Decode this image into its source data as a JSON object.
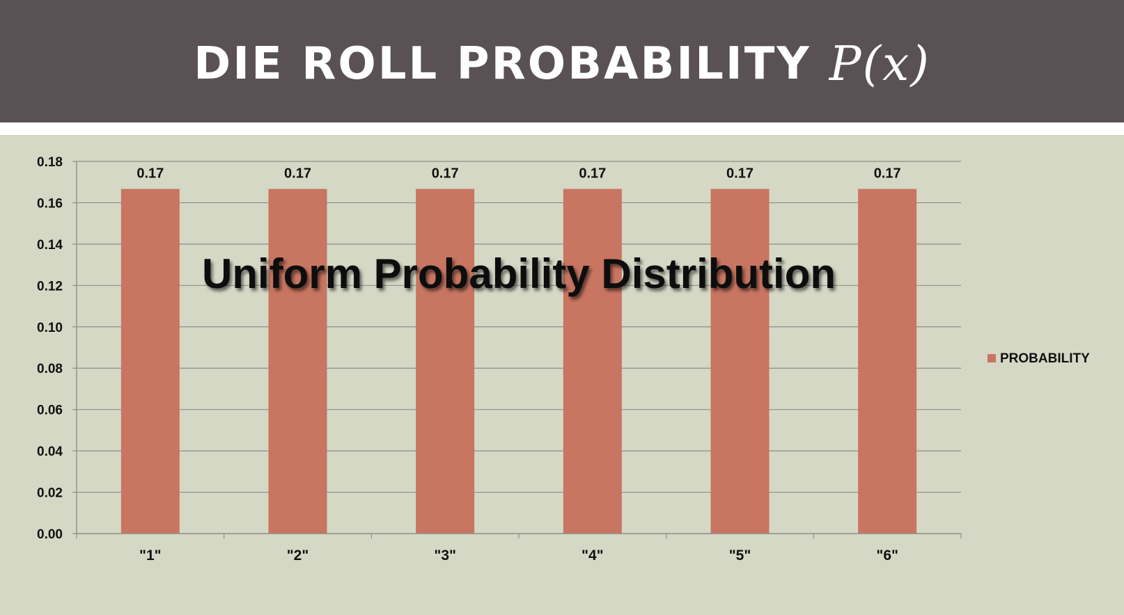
{
  "header": {
    "title": "DIE ROLL PROBABILITY",
    "title_math": "P(x)"
  },
  "colors": {
    "header_bg": "#5a5155",
    "background": "#d5d8c5",
    "bar": "#c87561",
    "grid": "#8e8e88"
  },
  "chart_data": {
    "type": "bar",
    "categories": [
      "\"1\"",
      "\"2\"",
      "\"3\"",
      "\"4\"",
      "\"5\"",
      "\"6\""
    ],
    "series": [
      {
        "name": "PROBABILITY",
        "values": [
          0.1667,
          0.1667,
          0.1667,
          0.1667,
          0.1667,
          0.1667
        ]
      }
    ],
    "data_labels": [
      "0.17",
      "0.17",
      "0.17",
      "0.17",
      "0.17",
      "0.17"
    ],
    "yticks": [
      "0.00",
      "0.02",
      "0.04",
      "0.06",
      "0.08",
      "0.10",
      "0.12",
      "0.14",
      "0.16",
      "0.18"
    ],
    "ylim": [
      0,
      0.18
    ],
    "grid": true,
    "legend": "right",
    "annotation": "Uniform Probability Distribution"
  }
}
